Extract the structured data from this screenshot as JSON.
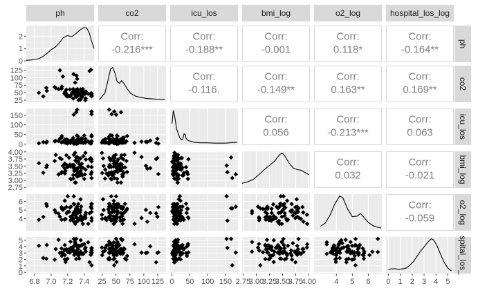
{
  "chart_data": {
    "type": "scatter",
    "subtype": "scatterplot-matrix",
    "variables": [
      "ph",
      "co2",
      "icu_los",
      "bmi_log",
      "o2_log",
      "hospital_los_log"
    ],
    "row_strip_labels": [
      "ph",
      "co2",
      "icu_los",
      "bmi_log",
      "o2_log",
      "hospital_los_log"
    ],
    "displayed_row_strip_labels": [
      "ph",
      "co2",
      "icu_los",
      "bmi_log",
      "o2_log",
      "spital_los_"
    ],
    "axes": {
      "ph": {
        "range": [
          6.7,
          7.52
        ],
        "ticks": [
          "6.8",
          "7.0",
          "7.2",
          "7.4"
        ],
        "tick_values": [
          6.8,
          7.0,
          7.2,
          7.4
        ]
      },
      "co2": {
        "range": [
          18,
          140
        ],
        "ticks": [
          "25",
          "50",
          "75",
          "100",
          "125"
        ],
        "tick_values": [
          25,
          50,
          75,
          100,
          125
        ]
      },
      "icu_los": {
        "range": [
          -5,
          185
        ],
        "ticks": [
          "0",
          "50",
          "100",
          "150"
        ],
        "tick_values": [
          0,
          50,
          100,
          150
        ]
      },
      "bmi_log": {
        "range": [
          2.73,
          4.02
        ],
        "ticks": [
          "2.75",
          "3.00",
          "3.25",
          "3.50",
          "3.75",
          "4.00"
        ],
        "tick_values": [
          2.75,
          3.0,
          3.25,
          3.5,
          3.75,
          4.0
        ]
      },
      "o2_log": {
        "range": [
          2.6,
          6.85
        ],
        "ticks": [
          "4",
          "5",
          "6"
        ],
        "tick_values": [
          4,
          5,
          6
        ]
      },
      "hospital_los_log": {
        "range": [
          -0.2,
          5.5
        ],
        "ticks": [
          "0",
          "1",
          "2",
          "3",
          "4",
          "5"
        ],
        "tick_values": [
          0,
          1,
          2,
          3,
          4,
          5
        ]
      }
    },
    "diag_y_axis": {
      "ticks": [
        "0",
        "1",
        "2"
      ],
      "tick_values": [
        0,
        1,
        2
      ],
      "range": [
        -0.1,
        2.85
      ]
    },
    "row_y_axes": {
      "co2": {
        "ticks": [
          "25",
          "50",
          "75",
          "100",
          "125"
        ],
        "tick_values": [
          25,
          50,
          75,
          100,
          125
        ]
      },
      "icu_los": {
        "ticks": [
          "0",
          "50",
          "100",
          "150"
        ],
        "tick_values": [
          0,
          50,
          100,
          150
        ]
      },
      "bmi_log": {
        "ticks": [
          "2.75",
          "3.00",
          "3.25",
          "3.50",
          "3.75",
          "4.00"
        ],
        "tick_values": [
          2.75,
          3.0,
          3.25,
          3.5,
          3.75,
          4.0
        ]
      },
      "o2_log": {
        "ticks": [
          "4",
          "5",
          "6"
        ],
        "tick_values": [
          4,
          5,
          6
        ]
      },
      "hospital_los_log": {
        "ticks": [
          "0",
          "1",
          "2",
          "3",
          "4",
          "5"
        ],
        "tick_values": [
          0,
          1,
          2,
          3,
          4,
          5
        ]
      }
    },
    "correlations": [
      {
        "row": "ph",
        "col": "co2",
        "label": "Corr:",
        "value": "-0.216***"
      },
      {
        "row": "ph",
        "col": "icu_los",
        "label": "Corr:",
        "value": "-0.188**"
      },
      {
        "row": "ph",
        "col": "bmi_log",
        "label": "Corr:",
        "value": "-0.001"
      },
      {
        "row": "ph",
        "col": "o2_log",
        "label": "Corr:",
        "value": "0.118*"
      },
      {
        "row": "ph",
        "col": "hospital_los_log",
        "label": "Corr:",
        "value": "-0.164**"
      },
      {
        "row": "co2",
        "col": "icu_los",
        "label": "Corr:",
        "value": "-0.116."
      },
      {
        "row": "co2",
        "col": "bmi_log",
        "label": "Corr:",
        "value": "-0.149**"
      },
      {
        "row": "co2",
        "col": "o2_log",
        "label": "Corr:",
        "value": "0.163**"
      },
      {
        "row": "co2",
        "col": "hospital_los_log",
        "label": "Corr:",
        "value": "0.169**"
      },
      {
        "row": "icu_los",
        "col": "bmi_log",
        "label": "Corr:",
        "value": "0.056"
      },
      {
        "row": "icu_los",
        "col": "o2_log",
        "label": "Corr:",
        "value": "-0.213***"
      },
      {
        "row": "icu_los",
        "col": "hospital_los_log",
        "label": "Corr:",
        "value": "0.063"
      },
      {
        "row": "bmi_log",
        "col": "o2_log",
        "label": "Corr:",
        "value": "0.032"
      },
      {
        "row": "bmi_log",
        "col": "hospital_los_log",
        "label": "Corr:",
        "value": "-0.021"
      },
      {
        "row": "o2_log",
        "col": "hospital_los_log",
        "label": "Corr:",
        "value": "-0.059"
      }
    ],
    "densities": {
      "ph": [
        [
          6.7,
          0.05
        ],
        [
          6.75,
          0.07
        ],
        [
          6.8,
          0.12
        ],
        [
          6.85,
          0.18
        ],
        [
          6.9,
          0.35
        ],
        [
          6.95,
          0.6
        ],
        [
          7.0,
          0.9
        ],
        [
          7.05,
          1.1
        ],
        [
          7.1,
          1.45
        ],
        [
          7.15,
          1.9
        ],
        [
          7.2,
          2.05
        ],
        [
          7.25,
          1.95
        ],
        [
          7.3,
          2.2
        ],
        [
          7.35,
          2.5
        ],
        [
          7.4,
          2.7
        ],
        [
          7.43,
          2.65
        ],
        [
          7.46,
          2.3
        ],
        [
          7.49,
          1.6
        ],
        [
          7.52,
          1.0
        ]
      ],
      "co2": [
        [
          20,
          0.04
        ],
        [
          30,
          0.22
        ],
        [
          35,
          0.55
        ],
        [
          40,
          0.9
        ],
        [
          44,
          0.95
        ],
        [
          48,
          0.8
        ],
        [
          52,
          0.55
        ],
        [
          56,
          0.5
        ],
        [
          60,
          0.58
        ],
        [
          64,
          0.5
        ],
        [
          70,
          0.35
        ],
        [
          76,
          0.22
        ],
        [
          85,
          0.14
        ],
        [
          95,
          0.1
        ],
        [
          105,
          0.07
        ],
        [
          115,
          0.06
        ],
        [
          125,
          0.05
        ],
        [
          138,
          0.05
        ]
      ],
      "icu_los": [
        [
          0,
          0.6
        ],
        [
          4,
          1.0
        ],
        [
          8,
          0.8
        ],
        [
          13,
          0.45
        ],
        [
          18,
          0.3
        ],
        [
          22,
          0.18
        ],
        [
          26,
          0.12
        ],
        [
          30,
          0.14
        ],
        [
          34,
          0.3
        ],
        [
          37,
          0.28
        ],
        [
          40,
          0.15
        ],
        [
          45,
          0.1
        ],
        [
          52,
          0.08
        ],
        [
          60,
          0.05
        ],
        [
          80,
          0.03
        ],
        [
          100,
          0.03
        ],
        [
          120,
          0.02
        ],
        [
          150,
          0.02
        ],
        [
          183,
          0.05
        ]
      ],
      "bmi_log": [
        [
          2.73,
          0.1
        ],
        [
          2.85,
          0.15
        ],
        [
          2.95,
          0.22
        ],
        [
          3.05,
          0.35
        ],
        [
          3.15,
          0.5
        ],
        [
          3.25,
          0.62
        ],
        [
          3.35,
          0.75
        ],
        [
          3.45,
          0.95
        ],
        [
          3.5,
          0.98
        ],
        [
          3.55,
          0.88
        ],
        [
          3.62,
          0.7
        ],
        [
          3.7,
          0.55
        ],
        [
          3.78,
          0.5
        ],
        [
          3.85,
          0.48
        ],
        [
          3.92,
          0.42
        ],
        [
          4.0,
          0.35
        ]
      ],
      "o2_log": [
        [
          3.0,
          0.1
        ],
        [
          3.3,
          0.2
        ],
        [
          3.6,
          0.45
        ],
        [
          3.9,
          0.8
        ],
        [
          4.2,
          1.05
        ],
        [
          4.4,
          1.0
        ],
        [
          4.7,
          0.65
        ],
        [
          5.0,
          0.4
        ],
        [
          5.3,
          0.42
        ],
        [
          5.5,
          0.5
        ],
        [
          5.7,
          0.4
        ],
        [
          6.0,
          0.22
        ],
        [
          6.3,
          0.12
        ],
        [
          6.6,
          0.07
        ],
        [
          6.8,
          0.05
        ]
      ],
      "hospital_los_log": [
        [
          0.0,
          0.08
        ],
        [
          0.3,
          0.1
        ],
        [
          0.6,
          0.1
        ],
        [
          0.9,
          0.08
        ],
        [
          1.2,
          0.1
        ],
        [
          1.5,
          0.12
        ],
        [
          1.8,
          0.2
        ],
        [
          2.1,
          0.3
        ],
        [
          2.4,
          0.45
        ],
        [
          2.7,
          0.6
        ],
        [
          3.0,
          0.72
        ],
        [
          3.3,
          0.85
        ],
        [
          3.6,
          0.95
        ],
        [
          3.8,
          0.92
        ],
        [
          4.1,
          0.75
        ],
        [
          4.4,
          0.5
        ],
        [
          4.7,
          0.28
        ],
        [
          5.0,
          0.12
        ],
        [
          5.3,
          0.04
        ]
      ]
    },
    "grid": true,
    "legend": "none"
  }
}
